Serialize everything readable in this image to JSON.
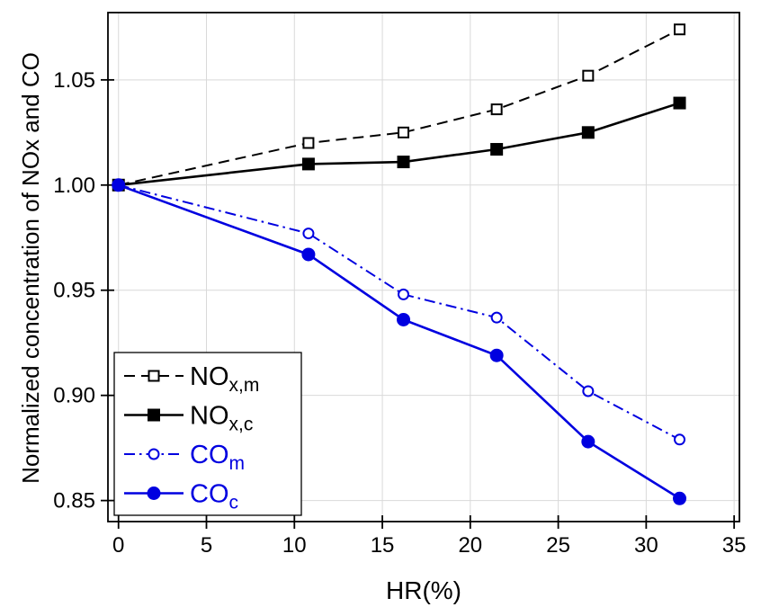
{
  "figure": {
    "background": "#ffffff",
    "xlabel": "HR(%)",
    "ylabel": "Normalized concentration of NOx and CO"
  },
  "chart_data": {
    "type": "line",
    "title": "",
    "xlabel": "HR(%)",
    "ylabel": "Normalized concentration of NOx and CO",
    "xlim": [
      -0.6,
      35.3
    ],
    "ylim": [
      0.84,
      1.082
    ],
    "xtick_values": [
      0,
      5,
      10,
      15,
      20,
      25,
      30,
      35
    ],
    "xtick_labels": [
      "0",
      "5",
      "10",
      "15",
      "20",
      "25",
      "30",
      "35"
    ],
    "ytick_values": [
      0.85,
      0.9,
      0.95,
      1.0,
      1.05
    ],
    "ytick_labels": [
      "0.85",
      "0.90",
      "0.95",
      "1.00",
      "1.05"
    ],
    "grid": true,
    "grid_color": "#d9d9d9",
    "frame_color": "#000000",
    "legend_position": "lower-left",
    "x": [
      0,
      10.8,
      16.2,
      21.5,
      26.7,
      31.9
    ],
    "series": [
      {
        "name": "NOx,m",
        "label_main": "NO",
        "label_sub": "x,m",
        "color": "#000000",
        "dash": "dashed",
        "marker": "square-open",
        "marker_size": 11,
        "line_width": 2,
        "values": [
          1.0,
          1.02,
          1.025,
          1.036,
          1.052,
          1.074
        ]
      },
      {
        "name": "NOx,c",
        "label_main": "NO",
        "label_sub": "x,c",
        "color": "#000000",
        "dash": "solid",
        "marker": "square-filled",
        "marker_size": 13,
        "line_width": 2.6,
        "values": [
          1.0,
          1.01,
          1.011,
          1.017,
          1.025,
          1.039
        ]
      },
      {
        "name": "COm",
        "label_main": "CO",
        "label_sub": "m",
        "color": "#0000e0",
        "dash": "dashdot",
        "marker": "circle-open",
        "marker_size": 11,
        "line_width": 2,
        "values": [
          1.0,
          0.977,
          0.948,
          0.937,
          0.902,
          0.879
        ]
      },
      {
        "name": "COc",
        "label_main": "CO",
        "label_sub": "c",
        "color": "#0000e0",
        "dash": "solid",
        "marker": "circle-filled",
        "marker_size": 15,
        "line_width": 2.6,
        "values": [
          1.0,
          0.967,
          0.936,
          0.919,
          0.878,
          0.851
        ]
      }
    ]
  }
}
